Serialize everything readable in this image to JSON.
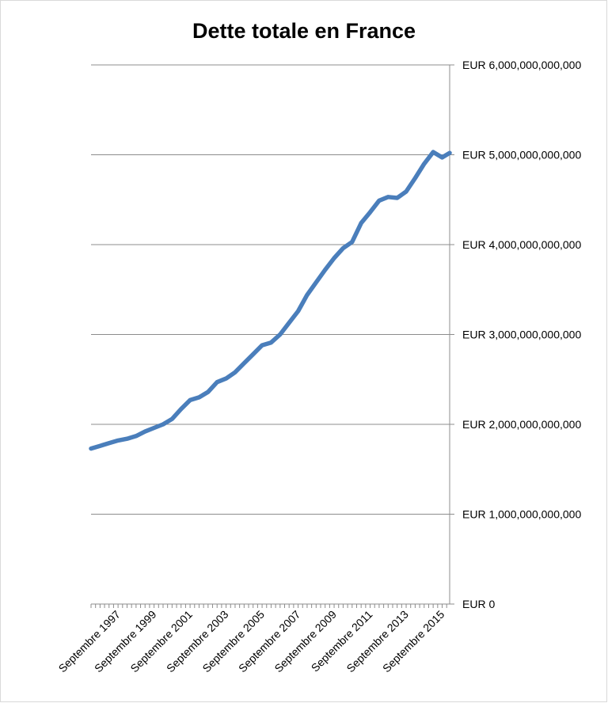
{
  "chart_data": {
    "type": "line",
    "title": "Dette totale en France",
    "xlabel": "",
    "ylabel": "",
    "ylim": [
      0,
      6000000000000
    ],
    "y_ticks": [
      0,
      1000000000000,
      2000000000000,
      3000000000000,
      4000000000000,
      5000000000000,
      6000000000000
    ],
    "y_tick_labels": [
      "EUR 0",
      "EUR 1,000,000,000,000",
      "EUR 2,000,000,000,000",
      "EUR 3,000,000,000,000",
      "EUR 4,000,000,000,000",
      "EUR 5,000,000,000,000",
      "EUR 6,000,000,000,000"
    ],
    "y_axis_side": "right",
    "x_tick_labels": [
      "Septembre 1997",
      "Septembre 1999",
      "Septembre 2001",
      "Septembre 2003",
      "Septembre 2005",
      "Septembre 2007",
      "Septembre 2009",
      "Septembre 2011",
      "Septembre 2013",
      "Septembre 2015"
    ],
    "x_range": [
      "1996-01",
      "2015-12"
    ],
    "grid": "horizontal",
    "series": [
      {
        "color": "#4a7ebb",
        "x": [
          "1996-01",
          "1996-07",
          "1997-01",
          "1997-07",
          "1998-01",
          "1998-07",
          "1999-01",
          "1999-07",
          "2000-01",
          "2000-07",
          "2001-01",
          "2001-07",
          "2002-01",
          "2002-07",
          "2003-01",
          "2003-07",
          "2004-01",
          "2004-07",
          "2005-01",
          "2005-07",
          "2006-01",
          "2006-07",
          "2007-01",
          "2007-07",
          "2008-01",
          "2008-07",
          "2009-01",
          "2009-07",
          "2010-01",
          "2010-07",
          "2011-01",
          "2011-07",
          "2012-01",
          "2012-07",
          "2013-01",
          "2013-07",
          "2014-01",
          "2014-07",
          "2015-01",
          "2015-07",
          "2015-12"
        ],
        "values": [
          1730000000000,
          1760000000000,
          1790000000000,
          1820000000000,
          1840000000000,
          1870000000000,
          1920000000000,
          1960000000000,
          2000000000000,
          2060000000000,
          2170000000000,
          2270000000000,
          2300000000000,
          2360000000000,
          2470000000000,
          2510000000000,
          2580000000000,
          2680000000000,
          2780000000000,
          2880000000000,
          2910000000000,
          3000000000000,
          3130000000000,
          3260000000000,
          3440000000000,
          3580000000000,
          3720000000000,
          3850000000000,
          3960000000000,
          4030000000000,
          4240000000000,
          4360000000000,
          4490000000000,
          4530000000000,
          4520000000000,
          4590000000000,
          4740000000000,
          4900000000000,
          5030000000000,
          4970000000000,
          5020000000000
        ]
      }
    ]
  }
}
